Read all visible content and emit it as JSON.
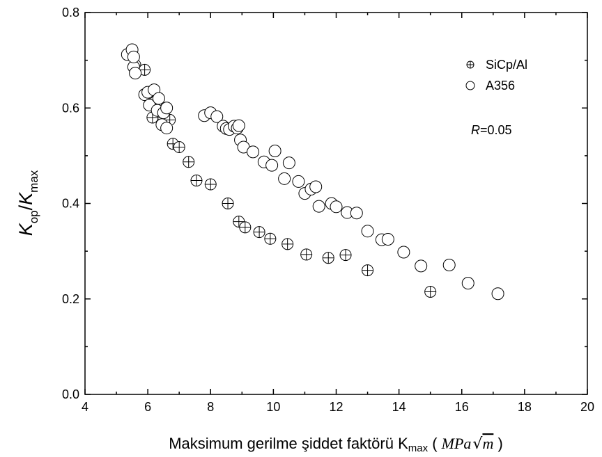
{
  "chart_data": {
    "type": "scatter",
    "xlabel": {
      "main": "Maksimum gerilme şiddet faktörü K",
      "sub": "max",
      "unit_open": " ( ",
      "unit_math": "MPa",
      "unit_root": "m",
      "unit_close": " )"
    },
    "ylabel": {
      "k1": "K",
      "sub1": "op",
      "slash": "/",
      "k2": "K",
      "sub2": "max"
    },
    "xlim": [
      4,
      20
    ],
    "ylim": [
      0.0,
      0.8
    ],
    "xticks": [
      "4",
      "6",
      "8",
      "10",
      "12",
      "14",
      "16",
      "18",
      "20"
    ],
    "yticks": [
      "0.0",
      "0.2",
      "0.4",
      "0.6",
      "0.8"
    ],
    "legend_position": "top-right",
    "annotation": {
      "italic": "R",
      "rest": "=0.05"
    },
    "series": [
      {
        "name": "SiCp/Al",
        "marker": "circle-plus",
        "legend_marker": "small-circle-plus",
        "points": [
          [
            5.6,
            0.69
          ],
          [
            5.9,
            0.68
          ],
          [
            6.0,
            0.63
          ],
          [
            6.15,
            0.58
          ],
          [
            6.3,
            0.6
          ],
          [
            6.5,
            0.58
          ],
          [
            6.7,
            0.575
          ],
          [
            6.8,
            0.525
          ],
          [
            7.0,
            0.518
          ],
          [
            7.3,
            0.487
          ],
          [
            7.55,
            0.448
          ],
          [
            8.0,
            0.44
          ],
          [
            8.55,
            0.4
          ],
          [
            8.9,
            0.362
          ],
          [
            9.1,
            0.35
          ],
          [
            9.55,
            0.34
          ],
          [
            9.9,
            0.326
          ],
          [
            10.45,
            0.315
          ],
          [
            11.05,
            0.293
          ],
          [
            11.75,
            0.286
          ],
          [
            12.3,
            0.292
          ],
          [
            13.0,
            0.26
          ],
          [
            15.0,
            0.215
          ]
        ]
      },
      {
        "name": "A356",
        "marker": "circle",
        "points": [
          [
            5.35,
            0.712
          ],
          [
            5.5,
            0.722
          ],
          [
            5.55,
            0.686
          ],
          [
            5.6,
            0.673
          ],
          [
            5.55,
            0.707
          ],
          [
            5.9,
            0.628
          ],
          [
            6.0,
            0.633
          ],
          [
            6.05,
            0.606
          ],
          [
            6.2,
            0.638
          ],
          [
            6.3,
            0.595
          ],
          [
            6.35,
            0.62
          ],
          [
            6.45,
            0.565
          ],
          [
            6.5,
            0.59
          ],
          [
            6.6,
            0.558
          ],
          [
            6.6,
            0.6
          ],
          [
            7.8,
            0.584
          ],
          [
            8.0,
            0.59
          ],
          [
            8.2,
            0.582
          ],
          [
            8.4,
            0.562
          ],
          [
            8.5,
            0.557
          ],
          [
            8.6,
            0.555
          ],
          [
            8.75,
            0.562
          ],
          [
            8.85,
            0.558
          ],
          [
            8.9,
            0.563
          ],
          [
            8.95,
            0.533
          ],
          [
            9.05,
            0.518
          ],
          [
            9.35,
            0.508
          ],
          [
            9.7,
            0.487
          ],
          [
            9.95,
            0.48
          ],
          [
            10.05,
            0.51
          ],
          [
            10.35,
            0.452
          ],
          [
            10.5,
            0.485
          ],
          [
            10.8,
            0.446
          ],
          [
            11.0,
            0.421
          ],
          [
            11.2,
            0.43
          ],
          [
            11.35,
            0.435
          ],
          [
            11.45,
            0.394
          ],
          [
            11.85,
            0.4
          ],
          [
            12.0,
            0.393
          ],
          [
            12.35,
            0.381
          ],
          [
            12.65,
            0.38
          ],
          [
            13.0,
            0.342
          ],
          [
            13.45,
            0.324
          ],
          [
            13.65,
            0.325
          ],
          [
            14.15,
            0.298
          ],
          [
            14.7,
            0.269
          ],
          [
            15.6,
            0.271
          ],
          [
            16.2,
            0.233
          ],
          [
            17.15,
            0.211
          ]
        ]
      }
    ]
  }
}
